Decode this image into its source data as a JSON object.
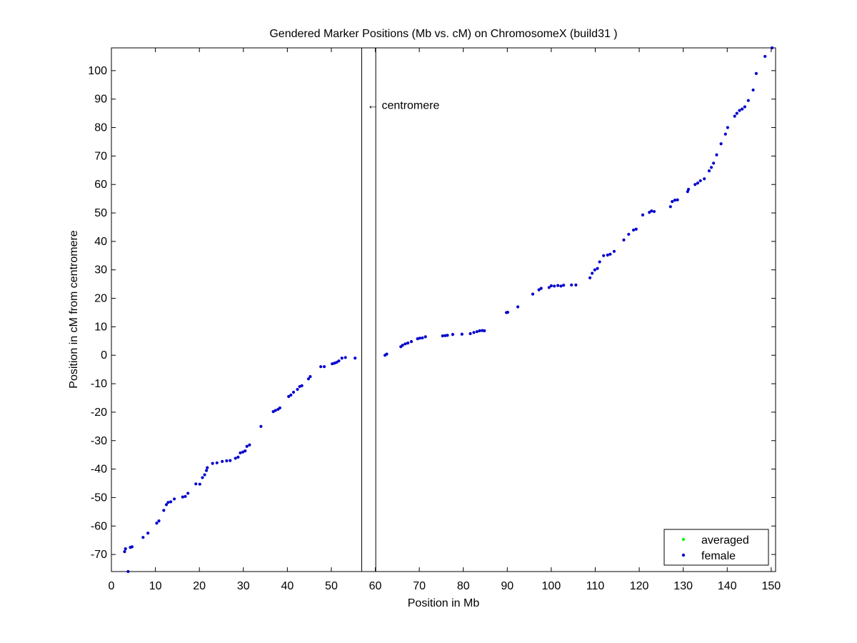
{
  "chart_data": {
    "type": "scatter",
    "title": "Gendered Marker Positions (Mb vs. cM) on ChromosomeX (build31 )",
    "xlabel": "Position in Mb",
    "ylabel": "Position in cM from centromere",
    "xlim": [
      0,
      151
    ],
    "ylim": [
      -76,
      108
    ],
    "x_ticks": [
      "0",
      "10",
      "20",
      "30",
      "40",
      "50",
      "60",
      "70",
      "80",
      "90",
      "100",
      "110",
      "120",
      "130",
      "140",
      "150"
    ],
    "y_ticks": [
      "-70",
      "-60",
      "-50",
      "-40",
      "-30",
      "-20",
      "-10",
      "0",
      "10",
      "20",
      "30",
      "40",
      "50",
      "60",
      "70",
      "80",
      "90",
      "100"
    ],
    "grid": false,
    "legend_position": "bottom-right",
    "centromere": {
      "start": 56.9,
      "end": 60.1,
      "label": "← centromere",
      "label_y": 88
    },
    "series": [
      {
        "name": "averaged",
        "color": "#00ff00",
        "points": []
      },
      {
        "name": "female",
        "color": "#0000cc",
        "points": [
          [
            3.0,
            -69
          ],
          [
            3.2,
            -68
          ],
          [
            3.8,
            -76
          ],
          [
            4.3,
            -67.5
          ],
          [
            4.7,
            -67.3
          ],
          [
            7.2,
            -64
          ],
          [
            8.3,
            -62.5
          ],
          [
            10.3,
            -59
          ],
          [
            10.8,
            -58.2
          ],
          [
            11.9,
            -54.5
          ],
          [
            12.5,
            -52.5
          ],
          [
            12.9,
            -51.7
          ],
          [
            13.5,
            -51.5
          ],
          [
            14.3,
            -50.5
          ],
          [
            16.2,
            -49.8
          ],
          [
            16.8,
            -49.6
          ],
          [
            17.4,
            -48.5
          ],
          [
            19.2,
            -45.2
          ],
          [
            20.1,
            -45.3
          ],
          [
            20.7,
            -43
          ],
          [
            21.2,
            -42
          ],
          [
            21.6,
            -40.5
          ],
          [
            21.8,
            -39.5
          ],
          [
            23.0,
            -38
          ],
          [
            24.0,
            -37.8
          ],
          [
            25.2,
            -37.3
          ],
          [
            26.2,
            -37.1
          ],
          [
            27.0,
            -37
          ],
          [
            28.2,
            -36.2
          ],
          [
            28.8,
            -35.8
          ],
          [
            29.3,
            -34.3
          ],
          [
            29.9,
            -34
          ],
          [
            30.4,
            -33.6
          ],
          [
            30.8,
            -32
          ],
          [
            31.4,
            -31.5
          ],
          [
            34.0,
            -25
          ],
          [
            36.8,
            -19.8
          ],
          [
            37.3,
            -19.4
          ],
          [
            37.9,
            -19
          ],
          [
            38.3,
            -18.5
          ],
          [
            40.3,
            -14.5
          ],
          [
            40.8,
            -14
          ],
          [
            41.4,
            -13
          ],
          [
            42.3,
            -12
          ],
          [
            42.8,
            -11
          ],
          [
            43.3,
            -10.7
          ],
          [
            44.8,
            -8.3
          ],
          [
            45.2,
            -7.5
          ],
          [
            47.6,
            -4
          ],
          [
            48.4,
            -4
          ],
          [
            50.2,
            -3
          ],
          [
            50.7,
            -2.8
          ],
          [
            51.2,
            -2.5
          ],
          [
            51.7,
            -2
          ],
          [
            52.4,
            -1
          ],
          [
            53.2,
            -0.8
          ],
          [
            55.4,
            -1
          ],
          [
            62.2,
            0
          ],
          [
            62.6,
            0.4
          ],
          [
            65.8,
            3
          ],
          [
            66.2,
            3.5
          ],
          [
            66.8,
            4
          ],
          [
            67.4,
            4.3
          ],
          [
            68.2,
            4.8
          ],
          [
            69.6,
            5.8
          ],
          [
            70.1,
            6
          ],
          [
            70.7,
            6.1
          ],
          [
            71.4,
            6.5
          ],
          [
            75.3,
            6.8
          ],
          [
            75.9,
            6.9
          ],
          [
            76.4,
            7
          ],
          [
            77.6,
            7.3
          ],
          [
            79.7,
            7.4
          ],
          [
            81.6,
            7.6
          ],
          [
            82.4,
            8
          ],
          [
            83.1,
            8.3
          ],
          [
            83.7,
            8.6
          ],
          [
            84.3,
            8.7
          ],
          [
            84.8,
            8.6
          ],
          [
            89.8,
            15
          ],
          [
            90.1,
            15.1
          ],
          [
            92.4,
            17
          ],
          [
            95.8,
            21.5
          ],
          [
            97.2,
            23
          ],
          [
            97.7,
            23.5
          ],
          [
            99.5,
            23.8
          ],
          [
            100.0,
            24.4
          ],
          [
            100.7,
            24.3
          ],
          [
            101.5,
            24.5
          ],
          [
            102.2,
            24.3
          ],
          [
            102.8,
            24.6
          ],
          [
            104.6,
            24.7
          ],
          [
            105.6,
            24.7
          ],
          [
            108.8,
            27.2
          ],
          [
            109.3,
            28.8
          ],
          [
            109.9,
            30
          ],
          [
            110.5,
            30.5
          ],
          [
            111.0,
            32.8
          ],
          [
            111.9,
            35
          ],
          [
            112.8,
            35.2
          ],
          [
            113.4,
            35.5
          ],
          [
            114.3,
            36.5
          ],
          [
            116.5,
            40.5
          ],
          [
            117.6,
            42.5
          ],
          [
            118.7,
            44
          ],
          [
            119.3,
            44.3
          ],
          [
            120.8,
            49.3
          ],
          [
            122.3,
            50.2
          ],
          [
            122.8,
            50.7
          ],
          [
            123.4,
            50.5
          ],
          [
            127.1,
            52.2
          ],
          [
            127.5,
            54
          ],
          [
            128.1,
            54.5
          ],
          [
            128.7,
            54.6
          ],
          [
            131.0,
            57.5
          ],
          [
            131.2,
            58.3
          ],
          [
            132.7,
            60
          ],
          [
            133.3,
            60.5
          ],
          [
            133.9,
            61.3
          ],
          [
            134.8,
            62
          ],
          [
            135.9,
            64.8
          ],
          [
            136.4,
            66
          ],
          [
            136.9,
            67.5
          ],
          [
            137.6,
            70.4
          ],
          [
            138.6,
            74.3
          ],
          [
            139.6,
            77.7
          ],
          [
            140.1,
            80
          ],
          [
            141.7,
            84
          ],
          [
            142.2,
            85
          ],
          [
            142.8,
            86
          ],
          [
            143.4,
            86.5
          ],
          [
            144.0,
            87.3
          ],
          [
            144.8,
            89.5
          ],
          [
            145.9,
            93.2
          ],
          [
            146.6,
            99
          ],
          [
            148.6,
            105
          ],
          [
            150.2,
            108
          ]
        ]
      }
    ]
  }
}
